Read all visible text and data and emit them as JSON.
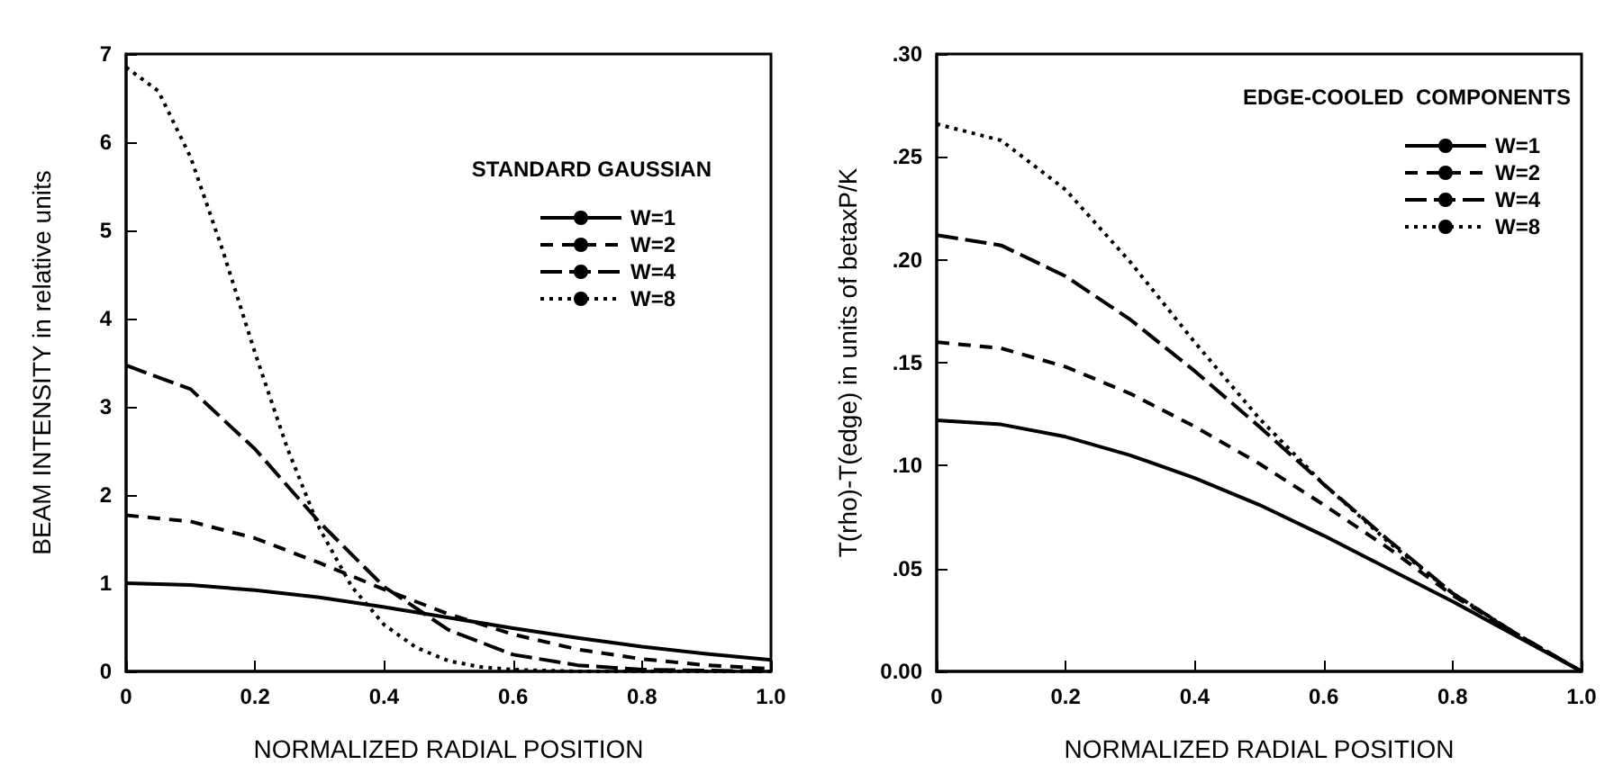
{
  "chart_data": [
    {
      "type": "line",
      "xlabel": "NORMALIZED RADIAL POSITION",
      "ylabel": "BEAM INTENSITY in relative units",
      "legend_title": "STANDARD GAUSSIAN",
      "legend": "top right",
      "grid": false,
      "marker": "none",
      "xlim": [
        0,
        1
      ],
      "xticks": [
        0,
        {
          "value": 0.2,
          "label": "0.2"
        },
        {
          "value": 0.4,
          "label": "0.4"
        },
        {
          "value": 0.6,
          "label": "0.6"
        },
        {
          "value": 0.8,
          "label": "0.8"
        },
        {
          "value": 1,
          "label": "1.0"
        }
      ],
      "ylim": [
        0,
        7
      ],
      "yticks": [
        0,
        1,
        2,
        3,
        4,
        5,
        6,
        7
      ],
      "series": [
        {
          "name": "W=1",
          "color": "#000000",
          "line_style": "solid",
          "x": [
            0,
            0.1,
            0.2,
            0.3,
            0.4,
            0.5,
            0.6,
            0.7,
            0.8,
            0.9,
            1
          ],
          "values": [
            1.0,
            0.98,
            0.92,
            0.84,
            0.73,
            0.61,
            0.49,
            0.38,
            0.28,
            0.2,
            0.13
          ]
        },
        {
          "name": "W=2",
          "color": "#000000",
          "line_style": "dashed",
          "x": [
            0,
            0.1,
            0.2,
            0.3,
            0.4,
            0.5,
            0.6,
            0.7,
            0.8,
            0.9,
            1
          ],
          "values": [
            1.77,
            1.7,
            1.51,
            1.23,
            0.93,
            0.65,
            0.42,
            0.25,
            0.14,
            0.07,
            0.03
          ]
        },
        {
          "name": "W=4",
          "color": "#000000",
          "line_style": "dashed",
          "x": [
            0,
            0.1,
            0.2,
            0.3,
            0.4,
            0.5,
            0.6,
            0.7,
            0.8,
            0.9,
            1
          ],
          "values": [
            3.47,
            3.2,
            2.52,
            1.69,
            0.96,
            0.47,
            0.19,
            0.07,
            0.02,
            0.01,
            0
          ]
        },
        {
          "name": "W=8",
          "color": "#000000",
          "line_style": "dotted",
          "x": [
            0,
            0.05,
            0.1,
            0.15,
            0.2,
            0.25,
            0.3,
            0.35,
            0.4,
            0.45,
            0.5,
            0.55,
            0.6,
            0.7,
            0.8,
            0.9,
            1
          ],
          "values": [
            6.85,
            6.58,
            5.83,
            4.77,
            3.61,
            2.53,
            1.62,
            0.96,
            0.53,
            0.27,
            0.12,
            0.05,
            0.02,
            0,
            0,
            0,
            0
          ]
        }
      ]
    },
    {
      "type": "line",
      "xlabel": "NORMALIZED RADIAL POSITION",
      "ylabel": "T(rho)-T(edge) in units of betaxP/K",
      "legend_title": "EDGE-COOLED  COMPONENTS",
      "legend": "top right",
      "grid": false,
      "marker": "none",
      "xlim": [
        0,
        1
      ],
      "xticks": [
        0,
        {
          "value": 0.2,
          "label": "0.2"
        },
        {
          "value": 0.4,
          "label": "0.4"
        },
        {
          "value": 0.6,
          "label": "0.6"
        },
        {
          "value": 0.8,
          "label": "0.8"
        },
        {
          "value": 1,
          "label": "1.0"
        }
      ],
      "ylim": [
        0,
        0.3
      ],
      "yticks": [
        {
          "value": 0,
          "label": "0.00"
        },
        {
          "value": 0.05,
          "label": ".05"
        },
        {
          "value": 0.1,
          "label": ".10"
        },
        {
          "value": 0.15,
          "label": ".15"
        },
        {
          "value": 0.2,
          "label": ".20"
        },
        {
          "value": 0.25,
          "label": ".25"
        },
        {
          "value": 0.3,
          "label": ".30"
        }
      ],
      "series": [
        {
          "name": "W=1",
          "color": "#000000",
          "line_style": "solid",
          "x": [
            0,
            0.1,
            0.2,
            0.3,
            0.4,
            0.5,
            0.6,
            0.7,
            0.8,
            0.9,
            1
          ],
          "values": [
            0.122,
            0.12,
            0.114,
            0.105,
            0.094,
            0.081,
            0.066,
            0.05,
            0.034,
            0.017,
            0
          ]
        },
        {
          "name": "W=2",
          "color": "#000000",
          "line_style": "dashed",
          "x": [
            0,
            0.1,
            0.2,
            0.3,
            0.4,
            0.5,
            0.6,
            0.7,
            0.8,
            0.9,
            1
          ],
          "values": [
            0.16,
            0.157,
            0.148,
            0.135,
            0.119,
            0.101,
            0.081,
            0.06,
            0.037,
            0.018,
            0
          ]
        },
        {
          "name": "W=4",
          "color": "#000000",
          "line_style": "dashed",
          "x": [
            0,
            0.1,
            0.2,
            0.3,
            0.4,
            0.5,
            0.6,
            0.7,
            0.8,
            0.9,
            1
          ],
          "values": [
            0.212,
            0.207,
            0.192,
            0.171,
            0.146,
            0.119,
            0.091,
            0.064,
            0.038,
            0.018,
            0
          ]
        },
        {
          "name": "W=8",
          "color": "#000000",
          "line_style": "dotted",
          "x": [
            0,
            0.1,
            0.2,
            0.3,
            0.4,
            0.5,
            0.6,
            0.7,
            0.8,
            0.9,
            1
          ],
          "values": [
            0.266,
            0.258,
            0.234,
            0.199,
            0.16,
            0.123,
            0.091,
            0.063,
            0.038,
            0.018,
            0
          ]
        }
      ]
    }
  ]
}
